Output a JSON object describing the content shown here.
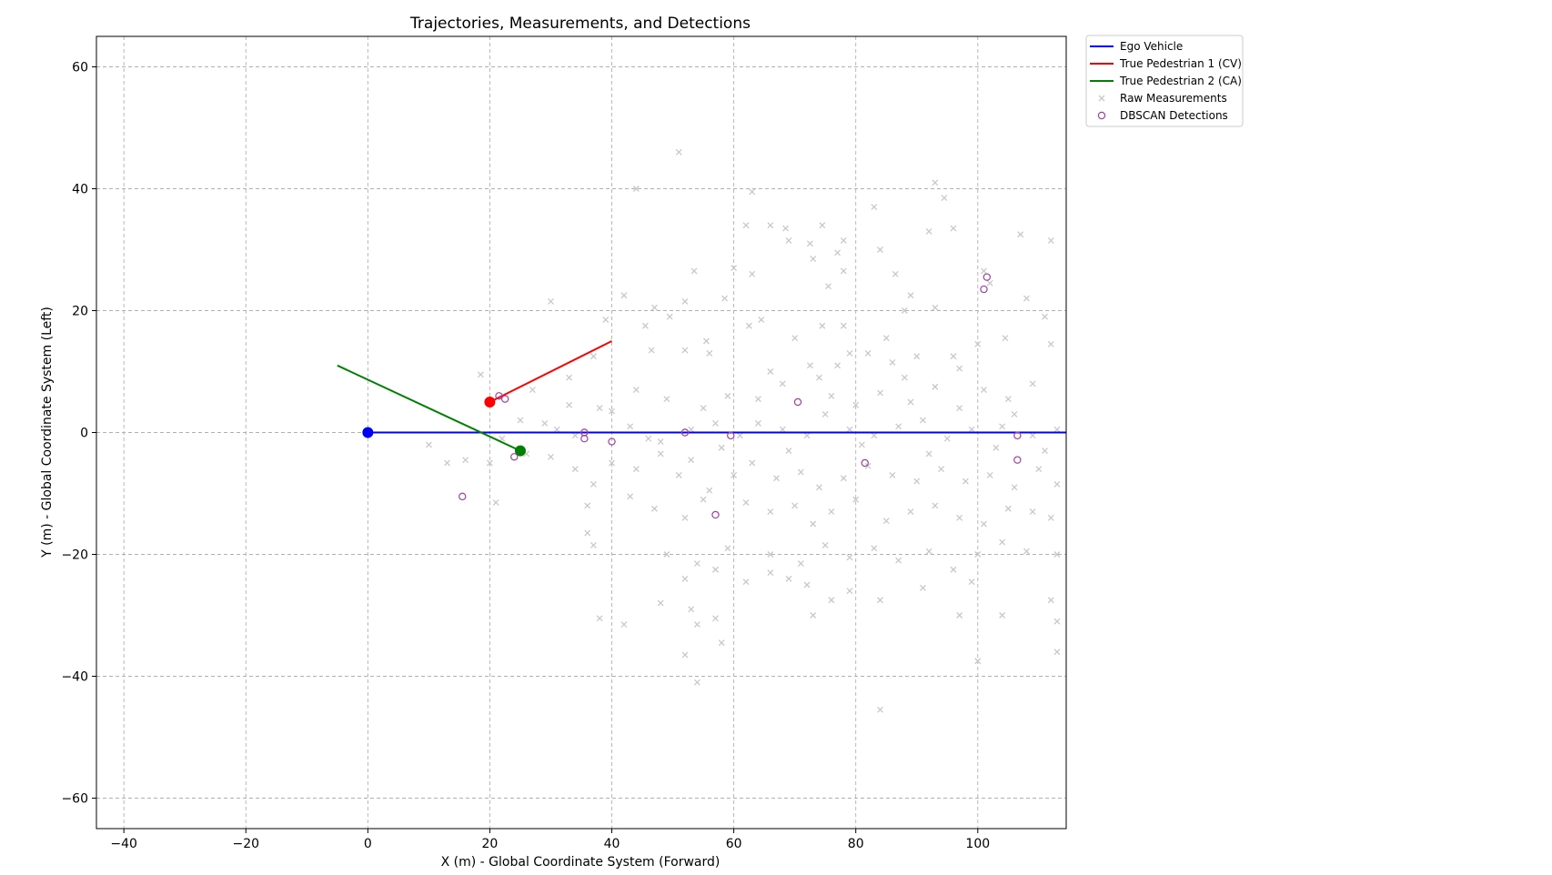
{
  "chart_data": {
    "type": "scatter",
    "title": "Trajectories, Measurements, and Detections",
    "xlabel": "X (m) - Global Coordinate System (Forward)",
    "ylabel": "Y (m) - Global Coordinate System (Left)",
    "xlim": [
      -44.5,
      114.5
    ],
    "ylim": [
      -65,
      65
    ],
    "xticks": [
      -40,
      -20,
      0,
      20,
      40,
      60,
      80,
      100
    ],
    "yticks": [
      -60,
      -40,
      -20,
      0,
      20,
      40,
      60
    ],
    "grid": true,
    "legend_position": "outside-top-right",
    "lines": [
      {
        "name": "Ego Vehicle",
        "color": "#0000ff",
        "x": [
          0,
          114.5
        ],
        "y": [
          0,
          0
        ],
        "marker": {
          "x": 0,
          "y": 0
        }
      },
      {
        "name": "True Pedestrian 1 (CV)",
        "color": "#ff0000",
        "x": [
          20,
          40
        ],
        "y": [
          5,
          15
        ],
        "marker": {
          "x": 20,
          "y": 5
        }
      },
      {
        "name": "True Pedestrian 2 (CA)",
        "color": "#008000",
        "x": [
          -5,
          25
        ],
        "y": [
          11,
          -3
        ],
        "marker": {
          "x": 25,
          "y": -3
        }
      }
    ],
    "raw_measurements": {
      "name": "Raw Measurements",
      "color": "#c8c8c8",
      "points": [
        [
          51,
          46
        ],
        [
          93,
          41
        ],
        [
          94.5,
          38.5
        ],
        [
          83,
          37
        ],
        [
          63,
          39.5
        ],
        [
          44,
          40
        ],
        [
          62,
          34
        ],
        [
          66,
          34
        ],
        [
          68.5,
          33.5
        ],
        [
          74.5,
          34
        ],
        [
          92,
          33
        ],
        [
          96,
          33.5
        ],
        [
          107,
          32.5
        ],
        [
          112,
          31.5
        ],
        [
          72.5,
          31
        ],
        [
          78,
          31.5
        ],
        [
          77,
          29.5
        ],
        [
          84,
          30
        ],
        [
          101,
          26.5
        ],
        [
          102,
          24.5
        ],
        [
          108,
          22
        ],
        [
          89,
          22.5
        ],
        [
          53.5,
          26.5
        ],
        [
          60,
          27
        ],
        [
          63,
          26
        ],
        [
          78,
          26.5
        ],
        [
          86.5,
          26
        ],
        [
          75.5,
          24
        ],
        [
          42,
          22.5
        ],
        [
          30,
          21.5
        ],
        [
          52,
          21.5
        ],
        [
          58.5,
          22
        ],
        [
          47,
          20.5
        ],
        [
          73,
          28.5
        ],
        [
          69,
          31.5
        ],
        [
          39,
          18.5
        ],
        [
          49.5,
          19
        ],
        [
          64.5,
          18.5
        ],
        [
          74.5,
          17.5
        ],
        [
          78,
          17.5
        ],
        [
          88,
          20
        ],
        [
          93,
          20.5
        ],
        [
          100,
          14.5
        ],
        [
          104.5,
          15.5
        ],
        [
          111,
          19
        ],
        [
          112,
          14.5
        ],
        [
          96,
          12.5
        ],
        [
          90,
          12.5
        ],
        [
          85,
          15.5
        ],
        [
          37,
          12.5
        ],
        [
          45.5,
          17.5
        ],
        [
          55.5,
          15
        ],
        [
          62.5,
          17.5
        ],
        [
          70,
          15.5
        ],
        [
          79,
          13
        ],
        [
          82,
          13
        ],
        [
          88,
          9
        ],
        [
          18.5,
          9.5
        ],
        [
          33,
          9
        ],
        [
          46.5,
          13.5
        ],
        [
          52,
          13.5
        ],
        [
          56,
          13
        ],
        [
          66,
          10
        ],
        [
          72.5,
          11
        ],
        [
          77,
          11
        ],
        [
          29,
          1.5
        ],
        [
          31,
          0.5
        ],
        [
          34,
          -0.5
        ],
        [
          38,
          4
        ],
        [
          43,
          1
        ],
        [
          48,
          -1.5
        ],
        [
          53,
          0.5
        ],
        [
          57,
          1.5
        ],
        [
          61,
          -0.5
        ],
        [
          64,
          1.5
        ],
        [
          68,
          0.5
        ],
        [
          72,
          -0.5
        ],
        [
          75,
          3
        ],
        [
          79,
          0.5
        ],
        [
          83,
          -0.5
        ],
        [
          87,
          1
        ],
        [
          91,
          2
        ],
        [
          95,
          -1
        ],
        [
          99,
          0.5
        ],
        [
          104,
          1
        ],
        [
          109,
          -0.5
        ],
        [
          113,
          0.5
        ],
        [
          10,
          -2
        ],
        [
          13,
          -5
        ],
        [
          16,
          -4.5
        ],
        [
          20,
          -5
        ],
        [
          22,
          -1
        ],
        [
          26,
          -3.5
        ],
        [
          30,
          -4
        ],
        [
          34,
          -6
        ],
        [
          37,
          -8.5
        ],
        [
          40,
          -5
        ],
        [
          44,
          -6
        ],
        [
          48,
          -3.5
        ],
        [
          53,
          -4.5
        ],
        [
          56,
          -9.5
        ],
        [
          60,
          -7
        ],
        [
          63,
          -5
        ],
        [
          67,
          -7.5
        ],
        [
          71,
          -6.5
        ],
        [
          74,
          -9
        ],
        [
          78,
          -7.5
        ],
        [
          82,
          -5.5
        ],
        [
          86,
          -7
        ],
        [
          90,
          -8
        ],
        [
          94,
          -6
        ],
        [
          98,
          -8
        ],
        [
          102,
          -7
        ],
        [
          106,
          -9
        ],
        [
          110,
          -6
        ],
        [
          113,
          -8.5
        ],
        [
          21,
          -11.5
        ],
        [
          36,
          -12
        ],
        [
          43,
          -10.5
        ],
        [
          47,
          -12.5
        ],
        [
          52,
          -14
        ],
        [
          55,
          -11
        ],
        [
          62,
          -11.5
        ],
        [
          66,
          -13
        ],
        [
          70,
          -12
        ],
        [
          73,
          -15
        ],
        [
          76,
          -13
        ],
        [
          80,
          -11
        ],
        [
          85,
          -14.5
        ],
        [
          89,
          -13
        ],
        [
          93,
          -12
        ],
        [
          97,
          -14
        ],
        [
          101,
          -15
        ],
        [
          105,
          -12.5
        ],
        [
          109,
          -13
        ],
        [
          112,
          -14
        ],
        [
          36,
          -16.5
        ],
        [
          37,
          -18.5
        ],
        [
          49,
          -20
        ],
        [
          54,
          -21.5
        ],
        [
          59,
          -19
        ],
        [
          66,
          -20
        ],
        [
          71,
          -21.5
        ],
        [
          75,
          -18.5
        ],
        [
          79,
          -20.5
        ],
        [
          83,
          -19
        ],
        [
          87,
          -21
        ],
        [
          92,
          -19.5
        ],
        [
          96,
          -22.5
        ],
        [
          100,
          -20
        ],
        [
          104,
          -18
        ],
        [
          108,
          -19.5
        ],
        [
          113,
          -20
        ],
        [
          52,
          -24
        ],
        [
          57,
          -22.5
        ],
        [
          62,
          -24.5
        ],
        [
          66,
          -23
        ],
        [
          69,
          -24
        ],
        [
          72,
          -25
        ],
        [
          76,
          -27.5
        ],
        [
          79,
          -26
        ],
        [
          84,
          -27.5
        ],
        [
          91,
          -25.5
        ],
        [
          99,
          -24.5
        ],
        [
          112,
          -27.5
        ],
        [
          38,
          -30.5
        ],
        [
          42,
          -31.5
        ],
        [
          48,
          -28
        ],
        [
          53,
          -29
        ],
        [
          57,
          -30.5
        ],
        [
          73,
          -30
        ],
        [
          97,
          -30
        ],
        [
          104,
          -30
        ],
        [
          113,
          -31
        ],
        [
          54,
          -31.5
        ],
        [
          58,
          -34.5
        ],
        [
          52,
          -36.5
        ],
        [
          100,
          -37.5
        ],
        [
          113,
          -36
        ],
        [
          54,
          -41
        ],
        [
          84,
          -45.5
        ],
        [
          64,
          5.5
        ],
        [
          68,
          8
        ],
        [
          76,
          6
        ],
        [
          80,
          4.5
        ],
        [
          84,
          6.5
        ],
        [
          89,
          5
        ],
        [
          93,
          7.5
        ],
        [
          97,
          4
        ],
        [
          101,
          7
        ],
        [
          105,
          5.5
        ],
        [
          109,
          8
        ],
        [
          59,
          6
        ],
        [
          55,
          4
        ],
        [
          49,
          5.5
        ],
        [
          44,
          7
        ],
        [
          40,
          3.5
        ],
        [
          27,
          7
        ],
        [
          33,
          4.5
        ],
        [
          25,
          2
        ],
        [
          46,
          -1
        ],
        [
          51,
          -7
        ],
        [
          58,
          -2.5
        ],
        [
          69,
          -3
        ],
        [
          81,
          -2
        ],
        [
          92,
          -3.5
        ],
        [
          103,
          -2.5
        ],
        [
          111,
          -3
        ],
        [
          106,
          3
        ],
        [
          97,
          10.5
        ],
        [
          86,
          11.5
        ],
        [
          74,
          9
        ]
      ]
    },
    "detections": {
      "name": "DBSCAN Detections",
      "color": "#a040a0",
      "points": [
        [
          21.5,
          6
        ],
        [
          22.5,
          5.5
        ],
        [
          24,
          -4
        ],
        [
          15.5,
          -10.5
        ],
        [
          35.5,
          0
        ],
        [
          35.5,
          -1
        ],
        [
          40,
          -1.5
        ],
        [
          52,
          0
        ],
        [
          57,
          -13.5
        ],
        [
          59.5,
          -0.5
        ],
        [
          70.5,
          5
        ],
        [
          81.5,
          -5
        ],
        [
          101,
          23.5
        ],
        [
          101.5,
          25.5
        ],
        [
          106.5,
          -0.5
        ],
        [
          106.5,
          -4.5
        ]
      ]
    },
    "legend": [
      {
        "label": "Ego Vehicle",
        "kind": "line",
        "color": "#0000ff"
      },
      {
        "label": "True Pedestrian 1 (CV)",
        "kind": "line",
        "color": "#ff0000"
      },
      {
        "label": "True Pedestrian 2 (CA)",
        "kind": "line",
        "color": "#008000"
      },
      {
        "label": "Raw Measurements",
        "kind": "x-marker",
        "color": "#c8c8c8"
      },
      {
        "label": "DBSCAN Detections",
        "kind": "circle-marker",
        "color": "#a040a0"
      }
    ]
  }
}
